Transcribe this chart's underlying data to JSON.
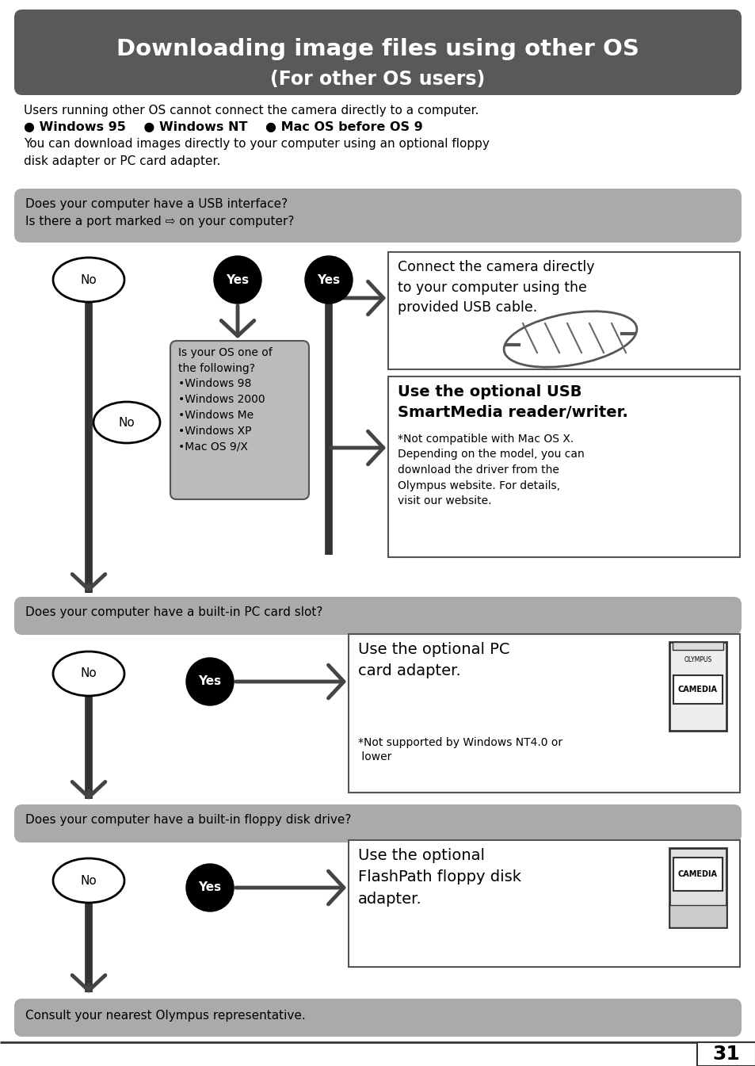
{
  "title_line1": "Downloading image files using other OS",
  "title_line2": "(For other OS users)",
  "title_bg": "#595959",
  "title_fg": "#ffffff",
  "body_bg": "#ffffff",
  "intro_text": "Users running other OS cannot connect the camera directly to a computer.",
  "bullet_line": "● Windows 95    ● Windows NT    ● Mac OS before OS 9",
  "intro_text2": "You can download images directly to your computer using an optional floppy\ndisk adapter or PC card adapter.",
  "q1": "Does your computer have a USB interface?\nIs there a port marked ⇨ on your computer?",
  "q2": "Does your computer have a built-in PC card slot?",
  "q3": "Does your computer have a built-in floppy disk drive?",
  "q4": "Consult your nearest Olympus representative.",
  "os_box": "Is your OS one of\nthe following?\n•Windows 98\n•Windows 2000\n•Windows Me\n•Windows XP\n•Mac OS 9/X",
  "ans1_title": "Connect the camera directly\nto your computer using the\nprovided USB cable.",
  "ans2_title": "Use the optional USB\nSmartMedia reader/writer.",
  "ans2_sub": "*Not compatible with Mac OS X.\nDepending on the model, you can\ndownload the driver from the\nOlympus website. For details,\nvisit our website.",
  "ans3_title": "Use the optional PC\ncard adapter.",
  "ans3_sub": "*Not supported by Windows NT4.0 or\n lower",
  "ans4_title": "Use the optional\nFlashPath floppy disk\nadapter.",
  "page_num": "31",
  "gray_box_bg": "#aaaaaa",
  "light_gray_box_bg": "#bbbbbb",
  "arrow_color": "#444444",
  "line_color": "#333333"
}
